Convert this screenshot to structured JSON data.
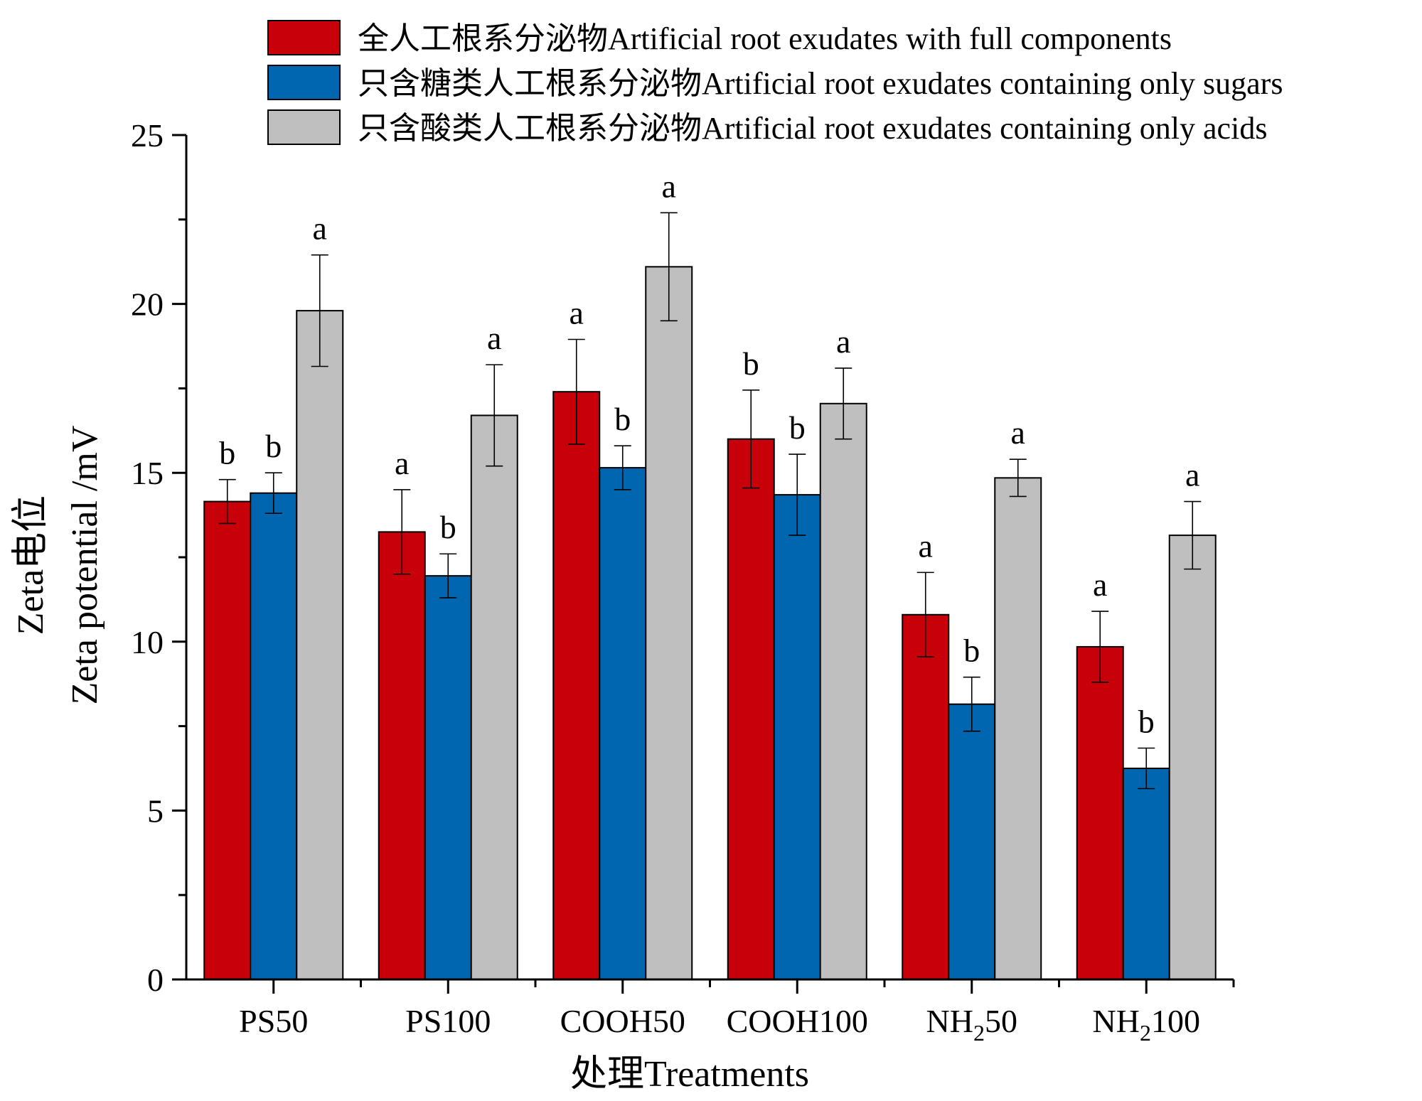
{
  "chart_data": {
    "type": "bar",
    "title": "",
    "xlabel": "处理Treatments",
    "ylabel_cn": "Zeta电位",
    "ylabel_en": "Zeta potential /mV",
    "ylim": [
      0,
      25
    ],
    "yticks": [
      0,
      5,
      10,
      15,
      20,
      25
    ],
    "legend_position": "top-right",
    "categories": [
      {
        "main": "PS50",
        "sub": "",
        "rest": ""
      },
      {
        "main": "PS100",
        "sub": "",
        "rest": ""
      },
      {
        "main": "COOH50",
        "sub": "",
        "rest": ""
      },
      {
        "main": "COOH100",
        "sub": "",
        "rest": ""
      },
      {
        "main": "NH",
        "sub": "2",
        "rest": "50"
      },
      {
        "main": "NH",
        "sub": "2",
        "rest": "100"
      }
    ],
    "series": [
      {
        "name": "全人工根系分泌物Artificial root exudates with full components",
        "color": "#c8000a",
        "values": [
          14.15,
          13.25,
          17.4,
          16.0,
          10.8,
          9.85
        ],
        "errors": [
          0.65,
          1.25,
          1.55,
          1.45,
          1.25,
          1.05
        ],
        "letters": [
          "b",
          "a",
          "a",
          "b",
          "a",
          "a"
        ]
      },
      {
        "name": "只含糖类人工根系分泌物Artificial root exudates containing only sugars",
        "color": "#0066b0",
        "values": [
          14.4,
          11.95,
          15.15,
          14.35,
          8.15,
          6.25
        ],
        "errors": [
          0.6,
          0.65,
          0.65,
          1.2,
          0.8,
          0.6
        ],
        "letters": [
          "b",
          "b",
          "b",
          "b",
          "b",
          "b"
        ]
      },
      {
        "name": "只含酸类人工根系分泌物Artificial root exudates containing only acids",
        "color": "#bfbfbf",
        "values": [
          19.8,
          16.7,
          21.1,
          17.05,
          14.85,
          13.15
        ],
        "errors": [
          1.65,
          1.5,
          1.6,
          1.05,
          0.55,
          1.0
        ],
        "letters": [
          "a",
          "a",
          "a",
          "a",
          "a",
          "a"
        ]
      }
    ]
  }
}
